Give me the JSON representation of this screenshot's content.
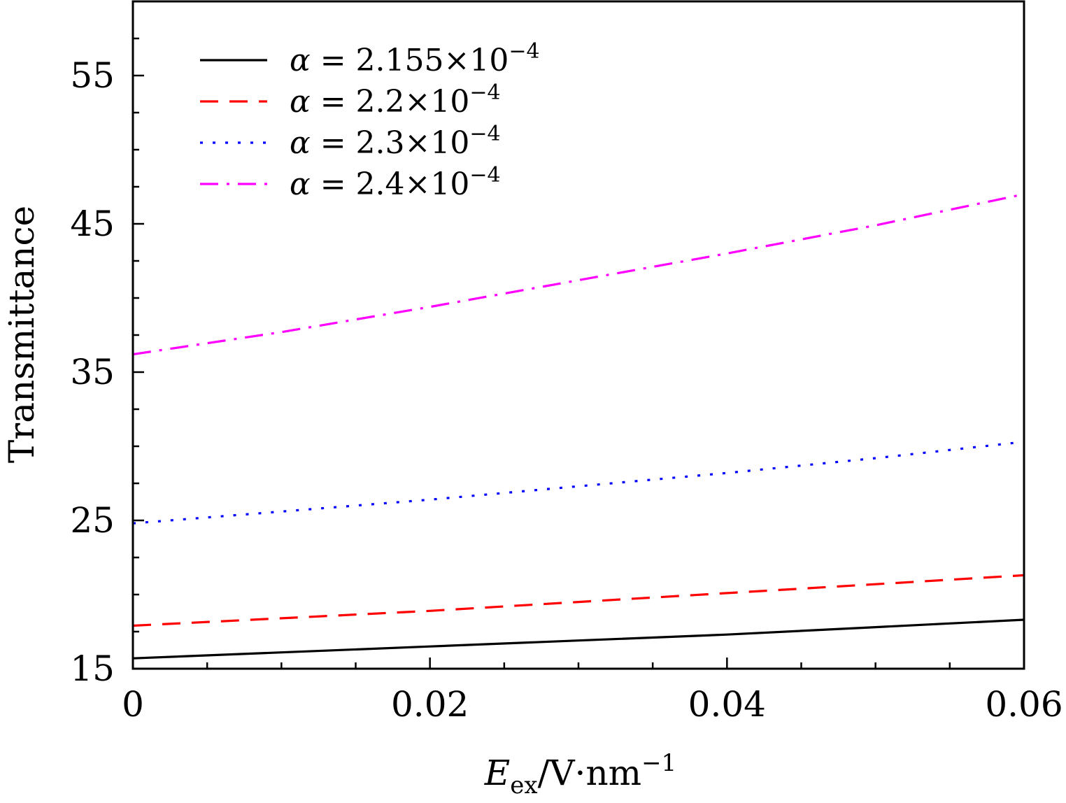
{
  "chart_data": {
    "type": "line",
    "title": "",
    "xlabel": "E_ex/V·nm^-1",
    "xlabel_main": "E",
    "xlabel_sub": "ex",
    "xlabel_rest": "/V·nm",
    "xlabel_sup": "−1",
    "ylabel": "Transmittance",
    "xlim": [
      0,
      0.06
    ],
    "ylim": [
      15,
      60
    ],
    "x_ticks": [
      0,
      0.02,
      0.04,
      0.06
    ],
    "x_tick_labels": [
      "0",
      "0.02",
      "0.04",
      "0.06"
    ],
    "y_ticks": [
      15,
      25,
      35,
      45,
      55
    ],
    "y_tick_labels": [
      "15",
      "25",
      "35",
      "45",
      "55"
    ],
    "grid": false,
    "legend_position": "top-left",
    "x": [
      0,
      0.01,
      0.02,
      0.03,
      0.04,
      0.05,
      0.06
    ],
    "series": [
      {
        "name": "α = 2.155×10^-4",
        "name_parts": {
          "alpha": "α",
          "eq": "=",
          "value": "2.155",
          "times": "×",
          "base": "10",
          "exp": "−4"
        },
        "color": "#000000",
        "dash": "solid",
        "values": [
          15.7,
          16.1,
          16.5,
          16.9,
          17.3,
          17.8,
          18.3
        ]
      },
      {
        "name": "α = 2.2×10^-4",
        "name_parts": {
          "alpha": "α",
          "eq": "=",
          "value": "2.2",
          "times": "×",
          "base": "10",
          "exp": "−4"
        },
        "color": "#ff0000",
        "dash": "dashed",
        "values": [
          17.9,
          18.4,
          18.9,
          19.5,
          20.1,
          20.7,
          21.3
        ]
      },
      {
        "name": "α = 2.3×10^-4",
        "name_parts": {
          "alpha": "α",
          "eq": "=",
          "value": "2.3",
          "times": "×",
          "base": "10",
          "exp": "−4"
        },
        "color": "#0000ff",
        "dash": "dotted",
        "values": [
          24.8,
          25.6,
          26.4,
          27.3,
          28.2,
          29.2,
          30.3
        ]
      },
      {
        "name": "α = 2.4×10^-4",
        "name_parts": {
          "alpha": "α",
          "eq": "=",
          "value": "2.4",
          "times": "×",
          "base": "10",
          "exp": "−4"
        },
        "color": "#ff00ff",
        "dash": "dashdot",
        "values": [
          36.2,
          37.7,
          39.4,
          41.2,
          43.0,
          44.9,
          47.0
        ]
      }
    ]
  }
}
